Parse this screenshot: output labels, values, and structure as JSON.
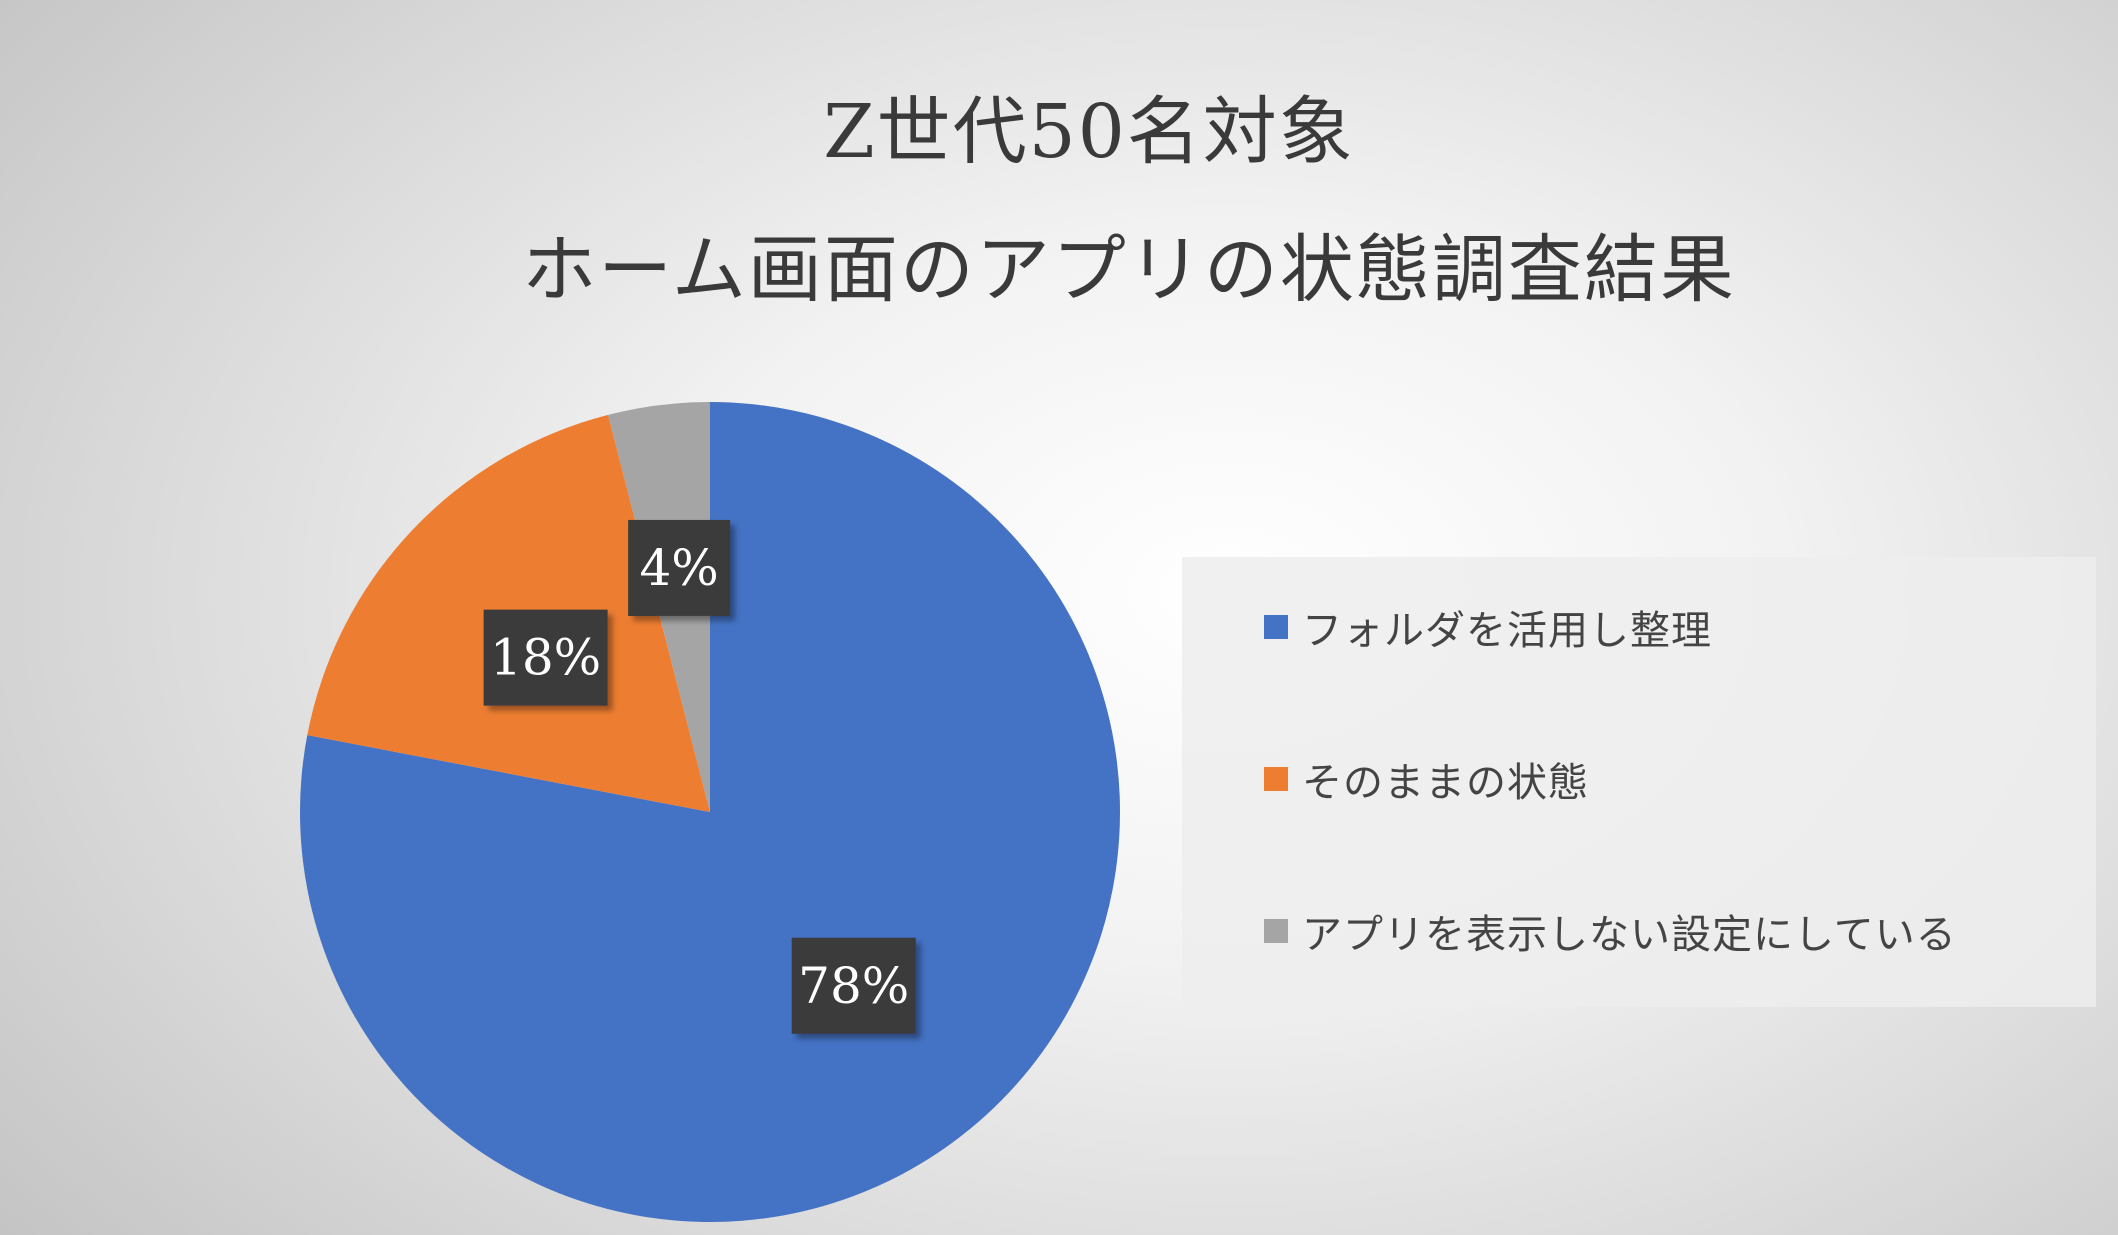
{
  "chart_data": {
    "type": "pie",
    "title": "Z世代50名対象",
    "subtitle": "ホーム画面のアプリの状態調査結果",
    "slices": [
      {
        "name": "フォルダを活用し整理",
        "value": 78,
        "label": "78%",
        "color": "#4472c4"
      },
      {
        "name": "そのままの状態",
        "value": 18,
        "label": "18%",
        "color": "#ed7d31"
      },
      {
        "name": "アプリを表示しない設定にしている",
        "value": 4,
        "label": "4%",
        "color": "#a5a5a5"
      }
    ],
    "legend_position": "right"
  }
}
